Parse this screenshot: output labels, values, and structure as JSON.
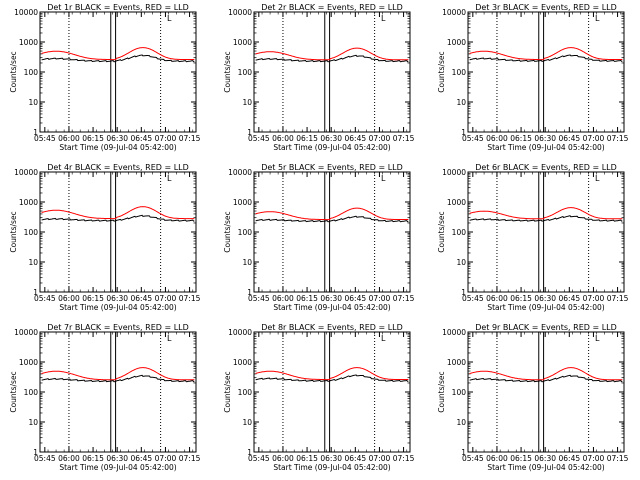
{
  "chart_data": {
    "type": "line",
    "y_label": "Counts/sec",
    "x_label": "Start Time (09-Jul-04 05:42:00)",
    "y_scale": "log",
    "ylim": [
      1,
      10000
    ],
    "y_ticks": [
      1,
      10,
      100,
      1000,
      10000
    ],
    "x_range": [
      "05:42",
      "07:19"
    ],
    "x_ticks": [
      "05:45",
      "06:00",
      "06:15",
      "06:30",
      "06:45",
      "07:00",
      "07:15"
    ],
    "dotted_vlines": [
      "06:00",
      "06:57"
    ],
    "solid_vlines": [
      "06:26",
      "06:29"
    ],
    "marker": "L",
    "series_colors": {
      "events": "#000000",
      "lld": "#ff0000"
    },
    "series_names": {
      "events": "Events",
      "lld": "LLD"
    },
    "panels": [
      {
        "title": "Det 1r BLACK = Events, RED = LLD",
        "events_peak": 300,
        "lld_peak": 520,
        "events_mid": 240,
        "lld_mid": 260
      },
      {
        "title": "Det 2r BLACK = Events, RED = LLD",
        "events_peak": 290,
        "lld_peak": 500,
        "events_mid": 240,
        "lld_mid": 255
      },
      {
        "title": "Det 3r BLACK = Events, RED = LLD",
        "events_peak": 300,
        "lld_peak": 520,
        "events_mid": 245,
        "lld_mid": 260
      },
      {
        "title": "Det 4r BLACK = Events, RED = LLD",
        "events_peak": 290,
        "lld_peak": 560,
        "events_mid": 250,
        "lld_mid": 280
      },
      {
        "title": "Det 5r BLACK = Events, RED = LLD",
        "events_peak": 270,
        "lld_peak": 500,
        "events_mid": 240,
        "lld_mid": 260
      },
      {
        "title": "Det 6r BLACK = Events, RED = LLD",
        "events_peak": 280,
        "lld_peak": 520,
        "events_mid": 250,
        "lld_mid": 275
      },
      {
        "title": "Det 7r BLACK = Events, RED = LLD",
        "events_peak": 290,
        "lld_peak": 520,
        "events_mid": 240,
        "lld_mid": 255
      },
      {
        "title": "Det 8r BLACK = Events, RED = LLD",
        "events_peak": 300,
        "lld_peak": 520,
        "events_mid": 245,
        "lld_mid": 260
      },
      {
        "title": "Det 9r BLACK = Events, RED = LLD",
        "events_peak": 290,
        "lld_peak": 520,
        "events_mid": 240,
        "lld_mid": 255
      }
    ]
  }
}
